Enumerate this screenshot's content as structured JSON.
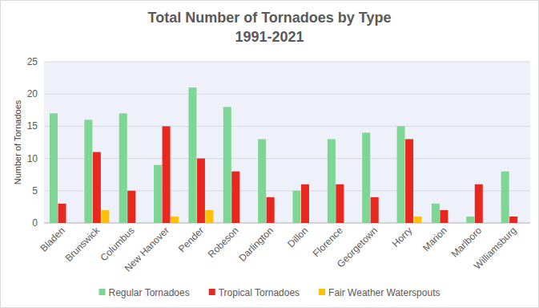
{
  "chart_data": {
    "type": "bar",
    "title": "Total Number of Tornadoes by Type",
    "subtitle": "1991-2021",
    "y_label": "Number of Tornadoes",
    "categories": [
      "Bladen",
      "Brunswick",
      "Columbus",
      "New Hanover",
      "Pender",
      "Robeson",
      "Darlington",
      "Dillon",
      "Florence",
      "Georgetown",
      "Horry",
      "Marion",
      "Marlboro",
      "Williamsburg"
    ],
    "series": [
      {
        "name": "Regular Tornadoes",
        "color": "#7dd693",
        "values": [
          17,
          16,
          17,
          9,
          21,
          18,
          13,
          5,
          13,
          14,
          15,
          3,
          1,
          8
        ]
      },
      {
        "name": "Tropical Tornadoes",
        "color": "#e8281e",
        "values": [
          3,
          11,
          5,
          15,
          10,
          8,
          4,
          6,
          6,
          4,
          13,
          2,
          6,
          1
        ]
      },
      {
        "name": "Fair Weather Waterspouts",
        "color": "#ffc000",
        "values": [
          0,
          2,
          0,
          1,
          2,
          0,
          0,
          0,
          0,
          0,
          1,
          0,
          0,
          0
        ]
      }
    ],
    "ylim": [
      0,
      25
    ],
    "yticks": [
      0,
      5,
      10,
      15,
      20,
      25
    ],
    "grid": true,
    "legend": "bottom"
  }
}
